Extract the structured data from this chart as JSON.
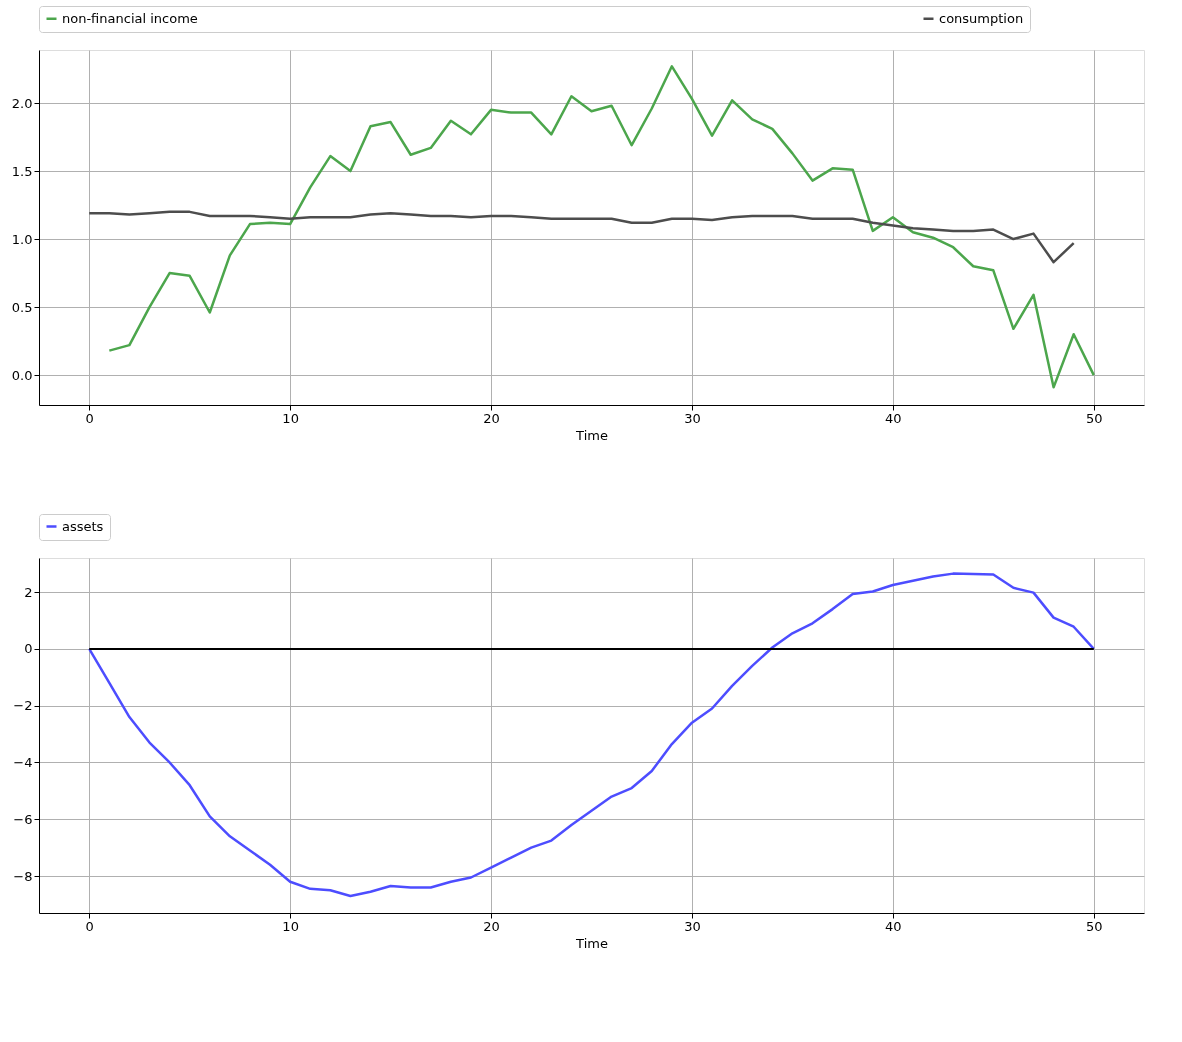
{
  "chart_data": [
    {
      "type": "line",
      "xlabel": "Time",
      "xlim": [
        -2.5,
        52.5
      ],
      "xticks": [
        0,
        10,
        20,
        30,
        40,
        50
      ],
      "ylim": [
        -0.22,
        2.39
      ],
      "yticks": [
        {
          "value": 0,
          "label": "0.0"
        },
        0.5,
        {
          "value": 1,
          "label": "1.0"
        },
        1.5,
        {
          "value": 2,
          "label": "2.0"
        }
      ],
      "grid": true,
      "legend": "top",
      "series": [
        {
          "name": "non-financial income",
          "color": "#4ca64c",
          "x": [
            1,
            2,
            3,
            4,
            5,
            6,
            7,
            8,
            9,
            10,
            11,
            12,
            13,
            14,
            15,
            16,
            17,
            18,
            19,
            20,
            21,
            22,
            23,
            24,
            25,
            26,
            27,
            28,
            29,
            30,
            31,
            32,
            33,
            34,
            35,
            36,
            37,
            38,
            39,
            40,
            41,
            42,
            43,
            44,
            45,
            46,
            47,
            48,
            49,
            50
          ],
          "values": [
            0.18,
            0.22,
            0.5,
            0.75,
            0.73,
            0.46,
            0.88,
            1.11,
            1.12,
            1.11,
            1.38,
            1.61,
            1.5,
            1.83,
            1.86,
            1.62,
            1.67,
            1.87,
            1.77,
            1.95,
            1.93,
            1.93,
            1.77,
            2.05,
            1.94,
            1.98,
            1.69,
            1.96,
            2.27,
            2.03,
            1.76,
            2.02,
            1.88,
            1.81,
            1.63,
            1.43,
            1.52,
            1.51,
            1.06,
            1.16,
            1.05,
            1.01,
            0.94,
            0.8,
            0.77,
            0.34,
            0.59,
            -0.09,
            0.3,
            0.0
          ]
        },
        {
          "name": "consumption",
          "color": "#4d4d4d",
          "x": [
            0,
            1,
            2,
            3,
            4,
            5,
            6,
            7,
            8,
            9,
            10,
            11,
            12,
            13,
            14,
            15,
            16,
            17,
            18,
            19,
            20,
            21,
            22,
            23,
            24,
            25,
            26,
            27,
            28,
            29,
            30,
            31,
            32,
            33,
            34,
            35,
            36,
            37,
            38,
            39,
            40,
            41,
            42,
            43,
            44,
            45,
            46,
            47,
            48,
            49
          ],
          "values": [
            1.19,
            1.19,
            1.18,
            1.19,
            1.2,
            1.2,
            1.17,
            1.17,
            1.17,
            1.16,
            1.15,
            1.16,
            1.16,
            1.16,
            1.18,
            1.19,
            1.18,
            1.17,
            1.17,
            1.16,
            1.17,
            1.17,
            1.16,
            1.15,
            1.15,
            1.15,
            1.15,
            1.12,
            1.12,
            1.15,
            1.15,
            1.14,
            1.16,
            1.17,
            1.17,
            1.17,
            1.15,
            1.15,
            1.15,
            1.12,
            1.1,
            1.08,
            1.07,
            1.06,
            1.06,
            1.07,
            1.0,
            1.04,
            0.83,
            0.97
          ]
        }
      ]
    },
    {
      "type": "line",
      "xlabel": "Time",
      "xlim": [
        -2.5,
        52.5
      ],
      "xticks": [
        0,
        10,
        20,
        30,
        40,
        50
      ],
      "ylim": [
        -9.3,
        3.2
      ],
      "yticks": [
        -8,
        -6,
        -4,
        -2,
        0,
        2
      ],
      "grid": true,
      "legend": "top",
      "ref_lines": [
        {
          "axis": "y",
          "value": 0,
          "color": "#000000"
        }
      ],
      "x": [
        0,
        1,
        2,
        3,
        4,
        5,
        6,
        7,
        8,
        9,
        10,
        11,
        12,
        13,
        14,
        15,
        16,
        17,
        18,
        19,
        20,
        21,
        22,
        23,
        24,
        25,
        26,
        27,
        28,
        29,
        30,
        31,
        32,
        33,
        34,
        35,
        36,
        37,
        38,
        39,
        40,
        41,
        42,
        43,
        44,
        45,
        46,
        47,
        48,
        49,
        50
      ],
      "series": [
        {
          "name": "assets",
          "color": "#4d4dff",
          "values": [
            0,
            -1.2,
            -2.4,
            -3.3,
            -4.0,
            -4.8,
            -5.9,
            -6.6,
            -7.1,
            -7.6,
            -8.2,
            -8.45,
            -8.5,
            -8.7,
            -8.55,
            -8.35,
            -8.4,
            -8.4,
            -8.2,
            -8.05,
            -7.7,
            -7.35,
            -7.0,
            -6.75,
            -6.2,
            -5.7,
            -5.2,
            -4.9,
            -4.3,
            -3.35,
            -2.6,
            -2.1,
            -1.3,
            -0.6,
            0.05,
            0.55,
            0.9,
            1.4,
            1.93,
            2.02,
            2.25,
            2.4,
            2.55,
            2.65,
            2.64,
            2.62,
            2.15,
            1.98,
            1.1,
            0.78,
            0.0
          ]
        }
      ]
    }
  ]
}
